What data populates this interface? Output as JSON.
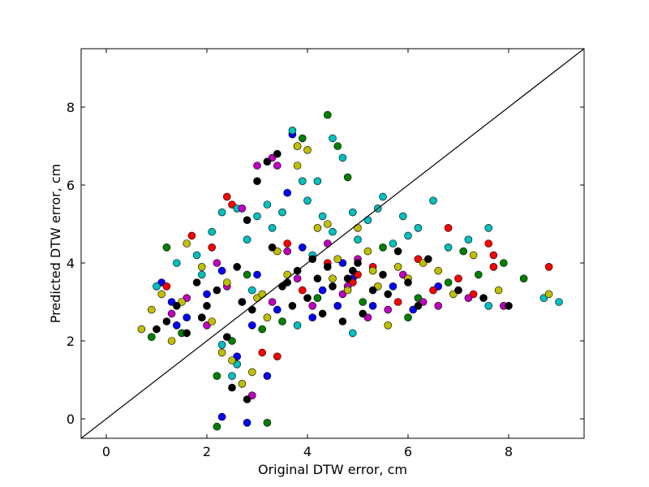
{
  "chart_data": {
    "type": "scatter",
    "title": "",
    "xlabel": "Original DTW error, cm",
    "ylabel": "Predicted DTW error, cm",
    "xlim": [
      -0.5,
      9.5
    ],
    "ylim": [
      -0.5,
      9.5
    ],
    "xticks": [
      0,
      2,
      4,
      6,
      8
    ],
    "yticks": [
      0,
      2,
      4,
      6,
      8
    ],
    "grid": false,
    "legend": "none",
    "reference_line": {
      "from": [
        -0.5,
        -0.5
      ],
      "to": [
        9.5,
        9.5
      ],
      "color": "#000000"
    },
    "series": [
      {
        "color": "#0000ff",
        "points": [
          [
            1.1,
            3.5
          ],
          [
            1.3,
            3.0
          ],
          [
            1.6,
            2.6
          ],
          [
            2.0,
            3.2
          ],
          [
            2.3,
            3.8
          ],
          [
            2.6,
            1.6
          ],
          [
            2.9,
            2.4
          ],
          [
            3.2,
            1.1
          ],
          [
            3.4,
            2.8
          ],
          [
            3.6,
            5.8
          ],
          [
            3.7,
            7.3
          ],
          [
            3.9,
            4.4
          ],
          [
            4.1,
            2.6
          ],
          [
            4.3,
            3.3
          ],
          [
            4.6,
            2.9
          ],
          [
            4.9,
            3.6
          ],
          [
            5.3,
            2.9
          ],
          [
            5.7,
            3.4
          ],
          [
            6.1,
            2.8
          ],
          [
            6.6,
            3.4
          ],
          [
            2.3,
            0.05
          ],
          [
            2.8,
            -0.1
          ],
          [
            1.4,
            2.4
          ],
          [
            3.0,
            3.7
          ],
          [
            4.7,
            4.0
          ]
        ]
      },
      {
        "color": "#008000",
        "points": [
          [
            0.9,
            2.1
          ],
          [
            1.2,
            4.4
          ],
          [
            1.5,
            2.2
          ],
          [
            1.9,
            2.6
          ],
          [
            2.2,
            1.1
          ],
          [
            2.2,
            -0.2
          ],
          [
            2.5,
            2.0
          ],
          [
            2.8,
            3.7
          ],
          [
            3.2,
            -0.1
          ],
          [
            3.5,
            2.5
          ],
          [
            3.9,
            7.2
          ],
          [
            4.4,
            7.8
          ],
          [
            4.6,
            7.0
          ],
          [
            4.8,
            6.2
          ],
          [
            5.1,
            3.0
          ],
          [
            5.5,
            4.4
          ],
          [
            6.0,
            2.6
          ],
          [
            6.2,
            3.1
          ],
          [
            6.8,
            3.5
          ],
          [
            7.1,
            4.3
          ],
          [
            7.4,
            3.7
          ],
          [
            7.9,
            4.0
          ],
          [
            8.3,
            3.6
          ],
          [
            3.1,
            2.3
          ],
          [
            4.2,
            3.1
          ]
        ]
      },
      {
        "color": "#ff0000",
        "points": [
          [
            1.2,
            3.4
          ],
          [
            1.7,
            4.7
          ],
          [
            2.1,
            4.4
          ],
          [
            2.4,
            5.7
          ],
          [
            2.5,
            5.5
          ],
          [
            3.1,
            1.7
          ],
          [
            3.4,
            1.6
          ],
          [
            3.9,
            3.3
          ],
          [
            4.4,
            4.0
          ],
          [
            4.9,
            3.5
          ],
          [
            5.3,
            3.9
          ],
          [
            5.8,
            3.0
          ],
          [
            6.2,
            4.1
          ],
          [
            6.5,
            3.3
          ],
          [
            6.8,
            4.9
          ],
          [
            7.0,
            3.6
          ],
          [
            7.3,
            3.2
          ],
          [
            7.6,
            4.5
          ],
          [
            7.7,
            4.2
          ],
          [
            7.7,
            3.9
          ],
          [
            8.8,
            3.9
          ],
          [
            2.7,
            3.0
          ],
          [
            3.6,
            4.5
          ],
          [
            5.0,
            3.7
          ]
        ]
      },
      {
        "color": "#00bfbf",
        "points": [
          [
            1.4,
            4.0
          ],
          [
            1.8,
            4.2
          ],
          [
            2.1,
            4.8
          ],
          [
            2.3,
            5.3
          ],
          [
            2.6,
            5.4
          ],
          [
            2.8,
            4.6
          ],
          [
            3.0,
            5.2
          ],
          [
            3.2,
            5.5
          ],
          [
            3.3,
            4.9
          ],
          [
            3.5,
            5.3
          ],
          [
            3.7,
            7.4
          ],
          [
            3.8,
            7.0
          ],
          [
            3.9,
            6.1
          ],
          [
            4.0,
            5.6
          ],
          [
            4.2,
            6.1
          ],
          [
            4.3,
            5.2
          ],
          [
            4.5,
            7.2
          ],
          [
            4.5,
            4.8
          ],
          [
            4.7,
            6.7
          ],
          [
            4.9,
            5.3
          ],
          [
            5.0,
            4.6
          ],
          [
            5.2,
            5.1
          ],
          [
            5.4,
            5.4
          ],
          [
            5.5,
            5.7
          ],
          [
            5.7,
            4.5
          ],
          [
            5.9,
            5.2
          ],
          [
            6.0,
            4.7
          ],
          [
            6.2,
            4.9
          ],
          [
            6.5,
            5.6
          ],
          [
            6.8,
            4.4
          ],
          [
            7.2,
            4.6
          ],
          [
            7.6,
            4.9
          ],
          [
            8.7,
            3.1
          ],
          [
            9.0,
            3.0
          ],
          [
            7.6,
            2.9
          ],
          [
            2.5,
            1.1
          ],
          [
            2.3,
            1.9
          ],
          [
            2.6,
            1.4
          ],
          [
            3.8,
            2.4
          ],
          [
            4.9,
            2.2
          ],
          [
            1.0,
            3.4
          ],
          [
            1.9,
            3.7
          ],
          [
            2.9,
            3.3
          ],
          [
            4.1,
            4.2
          ]
        ]
      },
      {
        "color": "#bf00bf",
        "points": [
          [
            1.3,
            2.7
          ],
          [
            1.6,
            3.1
          ],
          [
            2.0,
            2.4
          ],
          [
            2.4,
            3.4
          ],
          [
            2.7,
            5.4
          ],
          [
            2.9,
            0.6
          ],
          [
            3.3,
            6.7
          ],
          [
            3.4,
            6.5
          ],
          [
            3.6,
            4.3
          ],
          [
            3.8,
            3.6
          ],
          [
            4.1,
            2.9
          ],
          [
            4.4,
            4.5
          ],
          [
            4.7,
            3.2
          ],
          [
            5.0,
            4.1
          ],
          [
            5.2,
            2.6
          ],
          [
            5.6,
            2.8
          ],
          [
            5.9,
            3.7
          ],
          [
            6.3,
            3.0
          ],
          [
            6.6,
            2.9
          ],
          [
            7.2,
            3.1
          ],
          [
            7.9,
            2.9
          ],
          [
            3.0,
            6.5
          ],
          [
            2.2,
            4.0
          ],
          [
            3.3,
            3.0
          ],
          [
            4.8,
            3.4
          ]
        ]
      },
      {
        "color": "#bfbf00",
        "points": [
          [
            0.7,
            2.3
          ],
          [
            0.9,
            2.8
          ],
          [
            1.1,
            3.2
          ],
          [
            1.3,
            2.0
          ],
          [
            1.6,
            4.5
          ],
          [
            1.9,
            3.9
          ],
          [
            2.1,
            2.5
          ],
          [
            2.3,
            1.7
          ],
          [
            2.5,
            1.5
          ],
          [
            2.7,
            0.9
          ],
          [
            2.9,
            1.2
          ],
          [
            3.0,
            3.1
          ],
          [
            3.2,
            2.6
          ],
          [
            3.4,
            4.3
          ],
          [
            3.6,
            3.7
          ],
          [
            3.8,
            7.0
          ],
          [
            3.8,
            6.5
          ],
          [
            4.0,
            6.9
          ],
          [
            4.2,
            4.9
          ],
          [
            4.4,
            5.0
          ],
          [
            4.6,
            4.1
          ],
          [
            4.8,
            3.3
          ],
          [
            5.0,
            4.9
          ],
          [
            5.2,
            4.3
          ],
          [
            5.4,
            3.4
          ],
          [
            5.6,
            2.4
          ],
          [
            5.8,
            3.9
          ],
          [
            6.0,
            3.6
          ],
          [
            6.3,
            4.0
          ],
          [
            6.6,
            3.8
          ],
          [
            6.9,
            3.2
          ],
          [
            7.3,
            4.2
          ],
          [
            7.8,
            3.3
          ],
          [
            8.8,
            3.2
          ],
          [
            1.5,
            3.0
          ],
          [
            2.4,
            3.5
          ],
          [
            3.1,
            3.2
          ],
          [
            4.5,
            3.6
          ],
          [
            5.3,
            3.8
          ]
        ]
      },
      {
        "color": "#000000",
        "points": [
          [
            1.0,
            2.3
          ],
          [
            1.2,
            2.5
          ],
          [
            1.4,
            2.9
          ],
          [
            1.6,
            2.2
          ],
          [
            1.8,
            3.5
          ],
          [
            2.0,
            2.9
          ],
          [
            2.2,
            3.3
          ],
          [
            2.4,
            2.1
          ],
          [
            2.5,
            0.8
          ],
          [
            2.6,
            3.9
          ],
          [
            2.8,
            0.5
          ],
          [
            2.8,
            5.1
          ],
          [
            2.9,
            2.8
          ],
          [
            3.0,
            6.1
          ],
          [
            3.2,
            6.6
          ],
          [
            3.3,
            4.4
          ],
          [
            3.4,
            6.8
          ],
          [
            3.5,
            3.4
          ],
          [
            3.7,
            2.9
          ],
          [
            3.8,
            3.8
          ],
          [
            4.0,
            3.1
          ],
          [
            4.1,
            4.1
          ],
          [
            4.3,
            2.7
          ],
          [
            4.4,
            3.9
          ],
          [
            4.5,
            3.4
          ],
          [
            4.7,
            2.5
          ],
          [
            4.8,
            3.6
          ],
          [
            5.0,
            4.0
          ],
          [
            5.1,
            2.7
          ],
          [
            5.3,
            3.3
          ],
          [
            5.5,
            3.7
          ],
          [
            5.6,
            3.2
          ],
          [
            5.8,
            4.3
          ],
          [
            6.0,
            3.5
          ],
          [
            6.2,
            2.9
          ],
          [
            6.4,
            4.1
          ],
          [
            7.0,
            3.3
          ],
          [
            7.5,
            3.1
          ],
          [
            8.0,
            2.9
          ],
          [
            1.9,
            2.6
          ],
          [
            2.7,
            3.0
          ],
          [
            3.6,
            3.5
          ],
          [
            4.2,
            3.6
          ],
          [
            4.9,
            3.8
          ]
        ]
      }
    ]
  }
}
